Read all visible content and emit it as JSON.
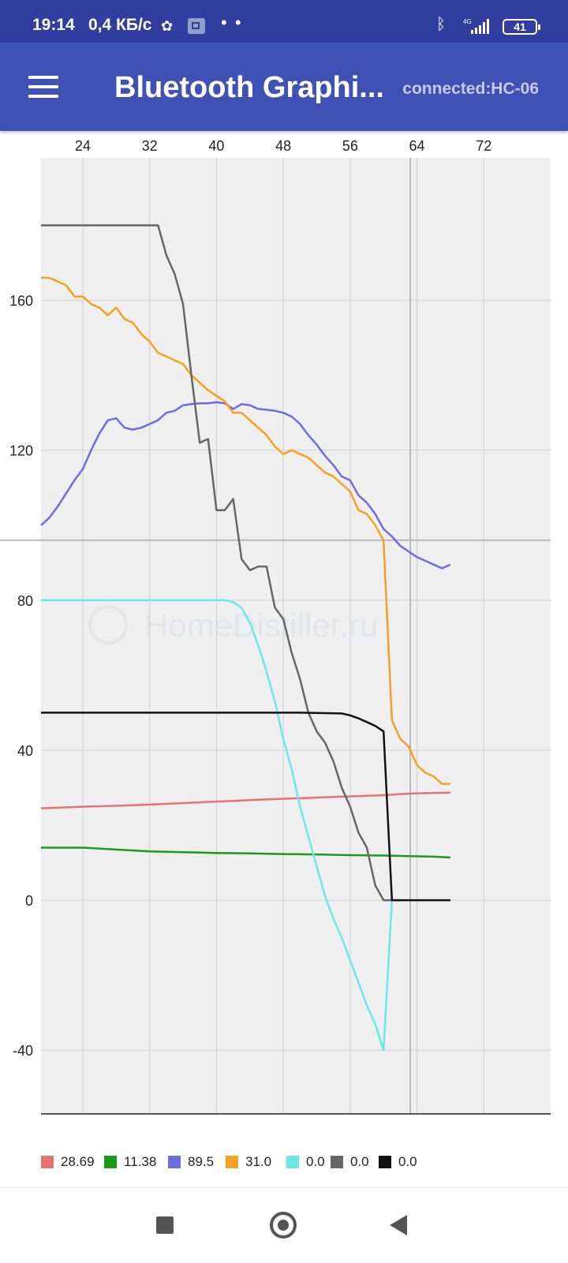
{
  "status_bar": {
    "time": "19:14",
    "network_speed": "0,4 КБ/с",
    "notification_icons": [
      "flower-icon",
      "cast-icon"
    ],
    "more": "• •",
    "network_type": "4G",
    "battery": "41",
    "icons": [
      "bluetooth-icon",
      "signal-icon",
      "battery-icon"
    ]
  },
  "app_bar": {
    "menu_icon": "hamburger-menu-icon",
    "title": "Bluetooth Graphi...",
    "connection": "connected:HC-06"
  },
  "chart_data": {
    "type": "line",
    "x_axis": {
      "position": "top",
      "ticks": [
        24,
        32,
        40,
        48,
        56,
        64,
        72
      ],
      "range": [
        19,
        80
      ]
    },
    "y_axis": {
      "ticks": [
        160,
        120,
        80,
        40,
        0,
        -40
      ],
      "range": [
        -57,
        198
      ]
    },
    "grid": true,
    "background": "#efefef",
    "crosshair": {
      "x": 63.2,
      "y": 96
    },
    "watermark": "HomeDistiller.ru",
    "legend_position": "bottom",
    "series": [
      {
        "name": "28.69",
        "color": "#e57373",
        "x": [
          19,
          25,
          30,
          35,
          40,
          45,
          50,
          55,
          60,
          62,
          64,
          66,
          68
        ],
        "y": [
          24.5,
          25,
          25.3,
          25.8,
          26.3,
          26.8,
          27.2,
          27.6,
          28,
          28.3,
          28.5,
          28.6,
          28.69
        ]
      },
      {
        "name": "11.38",
        "color": "#1a9a1a",
        "x": [
          19,
          24,
          28,
          32,
          36,
          40,
          44,
          48,
          52,
          56,
          60,
          64,
          66,
          68
        ],
        "y": [
          14,
          14,
          13.5,
          13,
          12.8,
          12.6,
          12.5,
          12.3,
          12.2,
          12.0,
          11.9,
          11.7,
          11.6,
          11.38
        ]
      },
      {
        "name": "89.5",
        "color": "#6d6de0",
        "x": [
          19,
          20,
          21,
          22,
          23,
          24,
          25,
          26,
          27,
          28,
          29,
          30,
          31,
          32,
          33,
          34,
          35,
          36,
          37,
          38,
          39,
          40,
          41,
          42,
          43,
          44,
          45,
          46,
          47,
          48,
          49,
          50,
          51,
          52,
          53,
          54,
          55,
          56,
          57,
          58,
          59,
          60,
          61,
          62,
          63,
          64,
          65,
          66,
          67,
          68
        ],
        "y": [
          100,
          102,
          105,
          108.5,
          112,
          115,
          120,
          124.5,
          128,
          128.5,
          126,
          125.5,
          126,
          127,
          128,
          130,
          130.5,
          132,
          132.3,
          132.5,
          132.5,
          132.8,
          132.5,
          131,
          132.3,
          132,
          131,
          130.8,
          130.5,
          130,
          129,
          127,
          124,
          121.5,
          118.5,
          116,
          113,
          112,
          108,
          106,
          103,
          99,
          97,
          94.5,
          93,
          91.5,
          90.5,
          89.5,
          88.5,
          89.5
        ]
      },
      {
        "name": "31.0",
        "color": "#f5a020",
        "x": [
          19,
          20,
          21,
          22,
          23,
          24,
          25,
          26,
          27,
          28,
          29,
          30,
          31,
          32,
          33,
          34,
          35,
          36,
          37,
          38,
          39,
          40,
          41,
          42,
          43,
          44,
          45,
          46,
          47,
          48,
          49,
          50,
          51,
          52,
          53,
          54,
          55,
          56,
          57,
          58,
          59,
          60,
          61,
          62,
          63,
          64,
          65,
          66,
          67,
          68
        ],
        "y": [
          166,
          166,
          165,
          164,
          161,
          161,
          159,
          158,
          156,
          158,
          155,
          154,
          151,
          149,
          146,
          145,
          144,
          143,
          140,
          138,
          136,
          134.5,
          133,
          130,
          130,
          128,
          126,
          124,
          121,
          119,
          120,
          119,
          118,
          116,
          114,
          113,
          111,
          109,
          104,
          103,
          100,
          96,
          48,
          43,
          41,
          36,
          34,
          33,
          31,
          31
        ]
      },
      {
        "name": "0.0",
        "color": "#6ae8e8",
        "x": [
          19,
          30,
          40,
          41,
          42,
          43,
          44,
          45,
          46,
          47,
          48,
          49,
          50,
          51,
          52,
          53,
          54,
          55,
          56,
          57,
          58,
          59,
          60,
          60.5,
          61
        ],
        "y": [
          80,
          80,
          80,
          80,
          79.5,
          78,
          74,
          68,
          61,
          53,
          43,
          35,
          25,
          17,
          9,
          1,
          -5,
          -10,
          -16,
          -22,
          -28,
          -33,
          -40,
          -20,
          0
        ]
      },
      {
        "name": "0.0",
        "color": "#666666",
        "x": [
          19,
          29,
          33,
          34,
          35,
          36,
          37,
          38,
          39,
          40,
          41,
          42,
          43,
          44,
          45,
          46,
          47,
          48,
          49,
          50,
          51,
          52,
          53,
          54,
          55,
          56,
          57,
          58,
          59,
          60,
          61,
          62
        ],
        "y": [
          180,
          180,
          180,
          172,
          167,
          159,
          140,
          122,
          123,
          104,
          104,
          107,
          91,
          88,
          89,
          89,
          78,
          75,
          66,
          59,
          50,
          45,
          42,
          37,
          30,
          25,
          18,
          14,
          4,
          0,
          0,
          0
        ]
      },
      {
        "name": "0.0",
        "color": "#111111",
        "x": [
          19,
          30,
          40,
          50,
          55,
          56,
          57,
          58,
          59,
          60,
          61,
          61.5,
          62,
          63,
          64,
          66,
          68
        ],
        "y": [
          50,
          50,
          50,
          50,
          49.8,
          49.3,
          48.5,
          47.5,
          46.5,
          45,
          0,
          0,
          0,
          0,
          0,
          0,
          0
        ]
      }
    ]
  },
  "legend": [
    {
      "label": "28.69",
      "color": "#e57373"
    },
    {
      "label": "11.38",
      "color": "#1a9a1a"
    },
    {
      "label": "89.5",
      "color": "#6d6de0"
    },
    {
      "label": "31.0",
      "color": "#f5a020"
    },
    {
      "label": "0.0",
      "color": "#6ae8e8"
    },
    {
      "label": "0.0",
      "color": "#666666"
    },
    {
      "label": "0.0",
      "color": "#111111"
    }
  ],
  "nav_bar": {
    "icons": [
      "recents-square-icon",
      "home-circle-icon",
      "back-triangle-icon"
    ]
  }
}
